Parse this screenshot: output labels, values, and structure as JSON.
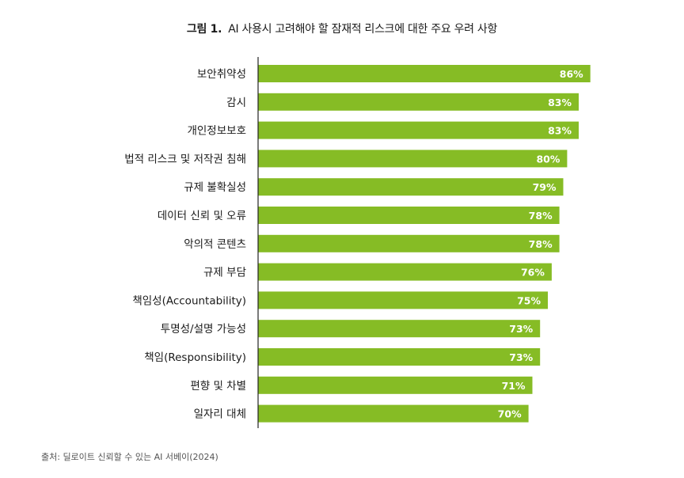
{
  "figure": {
    "label": "그림 1.",
    "title": "AI 사용시 고려해야 할 잠재적 리스크에 대한 주요 우려 사항",
    "source": "출처: 딜로이트 신뢰할 수 있는 AI 서베이(2024)"
  },
  "colors": {
    "bar": "#86bc25",
    "bar_label": "#ffffff",
    "axis": "#222222"
  },
  "chart_data": {
    "type": "bar",
    "orientation": "horizontal",
    "title": "AI 사용시 고려해야 할 잠재적 리스크에 대한 주요 우려 사항",
    "xlabel": "",
    "ylabel": "",
    "xlim": [
      0,
      100
    ],
    "unit": "%",
    "grid": false,
    "categories": [
      "보안취약성",
      "감시",
      "개인정보보호",
      "법적 리스크 및 저작권 침해",
      "규제 불확실성",
      "데이터 신뢰 및 오류",
      "악의적 콘텐츠",
      "규제 부담",
      "책임성(Accountability)",
      "투명성/설명 가능성",
      "책임(Responsibility)",
      "편향 및 차별",
      "일자리 대체"
    ],
    "values": [
      86,
      83,
      83,
      80,
      79,
      78,
      78,
      76,
      75,
      73,
      73,
      71,
      70
    ],
    "labels": [
      "86%",
      "83%",
      "83%",
      "80%",
      "79%",
      "78%",
      "78%",
      "76%",
      "75%",
      "73%",
      "73%",
      "71%",
      "70%"
    ]
  }
}
